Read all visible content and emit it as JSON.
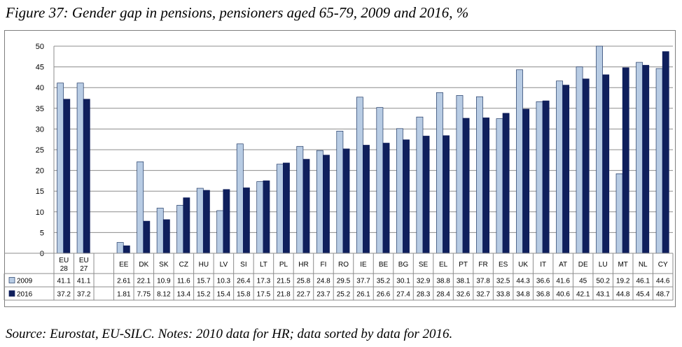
{
  "title": "Figure 37: Gender gap in pensions, pensioners aged 65-79, 2009 and 2016, %",
  "source": "Source: Eurostat, EU-SILC. Notes: 2010 data for HR; data sorted by data for 2016.",
  "colors": {
    "s2009": "#b8cce4",
    "s2016": "#0f1f5c",
    "s2009_stroke": "#1f3864"
  },
  "chart_data": {
    "type": "bar",
    "title": "Figure 37: Gender gap in pensions, pensioners aged 65-79, 2009 and 2016, %",
    "xlabel": "",
    "ylabel": "",
    "ylim": [
      0,
      50
    ],
    "yticks": [
      "0",
      "5",
      "10",
      "15",
      "20",
      "25",
      "30",
      "35",
      "40",
      "45",
      "50"
    ],
    "grid": true,
    "legend": "table",
    "categories": [
      {
        "l1": "EU",
        "l2": "28"
      },
      {
        "l1": "EU",
        "l2": "27"
      },
      {
        "l1": "",
        "l2": ""
      },
      {
        "l1": "EE",
        "l2": ""
      },
      {
        "l1": "DK",
        "l2": ""
      },
      {
        "l1": "SK",
        "l2": ""
      },
      {
        "l1": "CZ",
        "l2": ""
      },
      {
        "l1": "HU",
        "l2": ""
      },
      {
        "l1": "LV",
        "l2": ""
      },
      {
        "l1": "SI",
        "l2": ""
      },
      {
        "l1": "LT",
        "l2": ""
      },
      {
        "l1": "PL",
        "l2": ""
      },
      {
        "l1": "HR",
        "l2": ""
      },
      {
        "l1": "FI",
        "l2": ""
      },
      {
        "l1": "RO",
        "l2": ""
      },
      {
        "l1": "IE",
        "l2": ""
      },
      {
        "l1": "BE",
        "l2": ""
      },
      {
        "l1": "BG",
        "l2": ""
      },
      {
        "l1": "SE",
        "l2": ""
      },
      {
        "l1": "EL",
        "l2": ""
      },
      {
        "l1": "PT",
        "l2": ""
      },
      {
        "l1": "FR",
        "l2": ""
      },
      {
        "l1": "ES",
        "l2": ""
      },
      {
        "l1": "UK",
        "l2": ""
      },
      {
        "l1": "IT",
        "l2": ""
      },
      {
        "l1": "AT",
        "l2": ""
      },
      {
        "l1": "DE",
        "l2": ""
      },
      {
        "l1": "LU",
        "l2": ""
      },
      {
        "l1": "MT",
        "l2": ""
      },
      {
        "l1": "NL",
        "l2": ""
      },
      {
        "l1": "CY",
        "l2": ""
      }
    ],
    "series": [
      {
        "name": "2009",
        "values": [
          41.1,
          41.1,
          null,
          2.61,
          22.1,
          10.9,
          11.6,
          15.7,
          10.3,
          26.4,
          17.3,
          21.5,
          25.8,
          24.8,
          29.5,
          37.7,
          35.2,
          30.1,
          32.9,
          38.8,
          38.1,
          37.8,
          32.5,
          44.3,
          36.6,
          41.6,
          45,
          50.2,
          19.2,
          46.1,
          44.6
        ],
        "labels": [
          "41.1",
          "41.1",
          "",
          "2.61",
          "22.1",
          "10.9",
          "11.6",
          "15.7",
          "10.3",
          "26.4",
          "17.3",
          "21.5",
          "25.8",
          "24.8",
          "29.5",
          "37.7",
          "35.2",
          "30.1",
          "32.9",
          "38.8",
          "38.1",
          "37.8",
          "32.5",
          "44.3",
          "36.6",
          "41.6",
          "45",
          "50.2",
          "19.2",
          "46.1",
          "44.6"
        ]
      },
      {
        "name": "2016",
        "values": [
          37.2,
          37.2,
          null,
          1.81,
          7.75,
          8.12,
          13.4,
          15.2,
          15.4,
          15.8,
          17.5,
          21.8,
          22.7,
          23.7,
          25.2,
          26.1,
          26.6,
          27.4,
          28.3,
          28.4,
          32.6,
          32.7,
          33.8,
          34.8,
          36.8,
          40.6,
          42.1,
          43.1,
          44.8,
          45.4,
          48.7
        ],
        "labels": [
          "37.2",
          "37.2",
          "",
          "1.81",
          "7.75",
          "8.12",
          "13.4",
          "15.2",
          "15.4",
          "15.8",
          "17.5",
          "21.8",
          "22.7",
          "23.7",
          "25.2",
          "26.1",
          "26.6",
          "27.4",
          "28.3",
          "28.4",
          "32.6",
          "32.7",
          "33.8",
          "34.8",
          "36.8",
          "40.6",
          "42.1",
          "43.1",
          "44.8",
          "45.4",
          "48.7"
        ]
      }
    ]
  }
}
